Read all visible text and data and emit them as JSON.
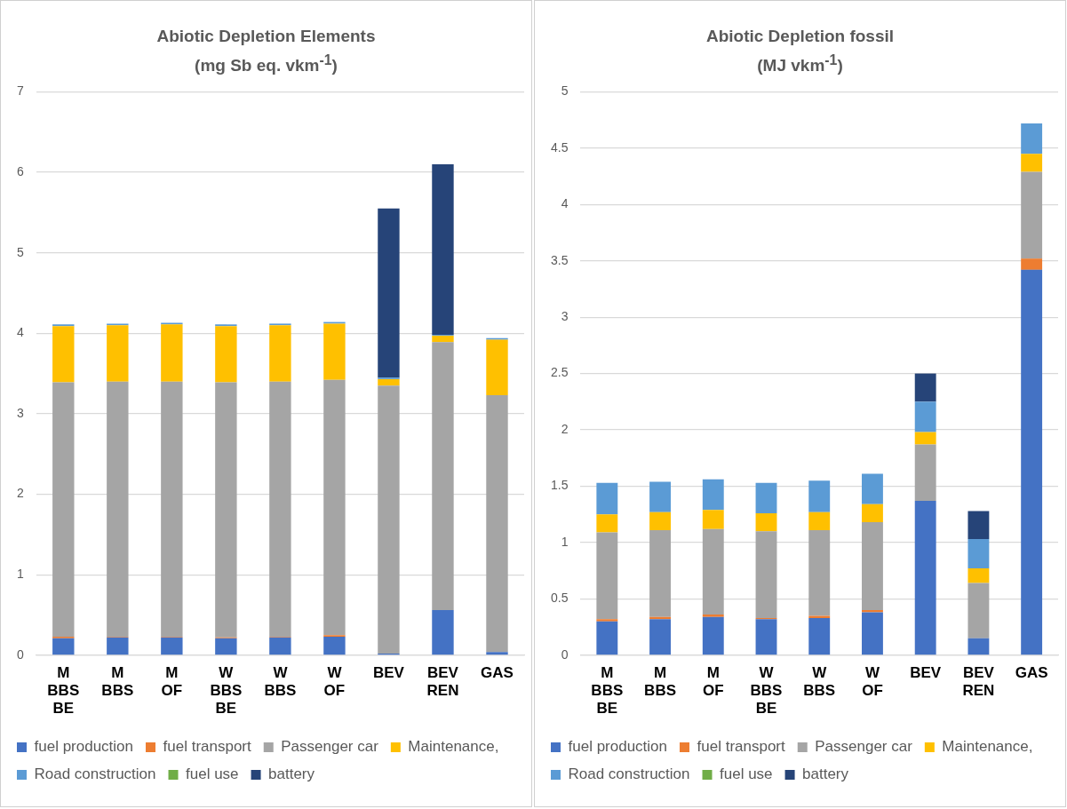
{
  "chart_data": [
    {
      "type": "bar",
      "title": "Abiotic Depletion Elements",
      "subtitle": "(mg Sb eq. vkm$^{-1}$)",
      "stacked": true,
      "grid": "y",
      "legend": "bottom",
      "categories": [
        "M BBS BE",
        "M BBS",
        "M OF",
        "W BBS BE",
        "W BBS",
        "W OF",
        "BEV",
        "BEV REN",
        "GAS"
      ],
      "ylim": [
        0,
        7
      ],
      "yticks": [
        0,
        1,
        2,
        3,
        4,
        5,
        6,
        7
      ],
      "series": [
        {
          "name": "fuel production",
          "color": "#4472c4",
          "values": [
            0.21,
            0.22,
            0.22,
            0.21,
            0.22,
            0.23,
            0.02,
            0.56,
            0.04
          ]
        },
        {
          "name": "fuel transport",
          "color": "#ed7d31",
          "values": [
            0.02,
            0.01,
            0.01,
            0.01,
            0.01,
            0.02,
            0,
            0,
            0
          ]
        },
        {
          "name": "Passenger car",
          "color": "#a5a5a5",
          "values": [
            3.16,
            3.17,
            3.17,
            3.17,
            3.17,
            3.17,
            3.33,
            3.33,
            3.19
          ]
        },
        {
          "name": "Maintenance,",
          "color": "#ffc000",
          "values": [
            0.7,
            0.7,
            0.71,
            0.7,
            0.7,
            0.7,
            0.08,
            0.08,
            0.69
          ]
        },
        {
          "name": "Road construction",
          "color": "#5b9bd5",
          "values": [
            0.02,
            0.02,
            0.02,
            0.02,
            0.02,
            0.02,
            0.02,
            0.01,
            0.02
          ]
        },
        {
          "name": "fuel use",
          "color": "#70ad47",
          "values": [
            0,
            0,
            0,
            0,
            0,
            0,
            0,
            0,
            0
          ]
        },
        {
          "name": "battery",
          "color": "#264478",
          "values": [
            0,
            0,
            0,
            0,
            0,
            0,
            2.1,
            2.12,
            0
          ]
        }
      ]
    },
    {
      "type": "bar",
      "title": "Abiotic Depletion fossil",
      "subtitle": "(MJ vkm$^{-1}$)",
      "stacked": true,
      "grid": "y",
      "legend": "bottom",
      "categories": [
        "M BBS BE",
        "M BBS",
        "M OF",
        "W BBS BE",
        "W BBS",
        "W OF",
        "BEV",
        "BEV REN",
        "GAS"
      ],
      "ylim": [
        0,
        5
      ],
      "yticks": [
        0,
        0.5,
        1,
        1.5,
        2,
        2.5,
        3,
        3.5,
        4,
        4.5,
        5
      ],
      "series": [
        {
          "name": "fuel production",
          "color": "#4472c4",
          "values": [
            0.3,
            0.32,
            0.34,
            0.32,
            0.33,
            0.38,
            1.37,
            0.15,
            3.42
          ]
        },
        {
          "name": "fuel transport",
          "color": "#ed7d31",
          "values": [
            0.02,
            0.02,
            0.02,
            0.01,
            0.02,
            0.02,
            0,
            0,
            0.1
          ]
        },
        {
          "name": "Passenger car",
          "color": "#a5a5a5",
          "values": [
            0.77,
            0.77,
            0.76,
            0.77,
            0.76,
            0.78,
            0.5,
            0.49,
            0.77
          ]
        },
        {
          "name": "Maintenance,",
          "color": "#ffc000",
          "values": [
            0.16,
            0.16,
            0.17,
            0.16,
            0.16,
            0.16,
            0.11,
            0.13,
            0.16
          ]
        },
        {
          "name": "Road construction",
          "color": "#5b9bd5",
          "values": [
            0.28,
            0.27,
            0.27,
            0.27,
            0.28,
            0.27,
            0.27,
            0.26,
            0.27
          ]
        },
        {
          "name": "fuel use",
          "color": "#70ad47",
          "values": [
            0,
            0,
            0,
            0,
            0,
            0,
            0,
            0,
            0
          ]
        },
        {
          "name": "battery",
          "color": "#264478",
          "values": [
            0,
            0,
            0,
            0,
            0,
            0,
            0.25,
            0.25,
            0
          ]
        }
      ]
    }
  ]
}
